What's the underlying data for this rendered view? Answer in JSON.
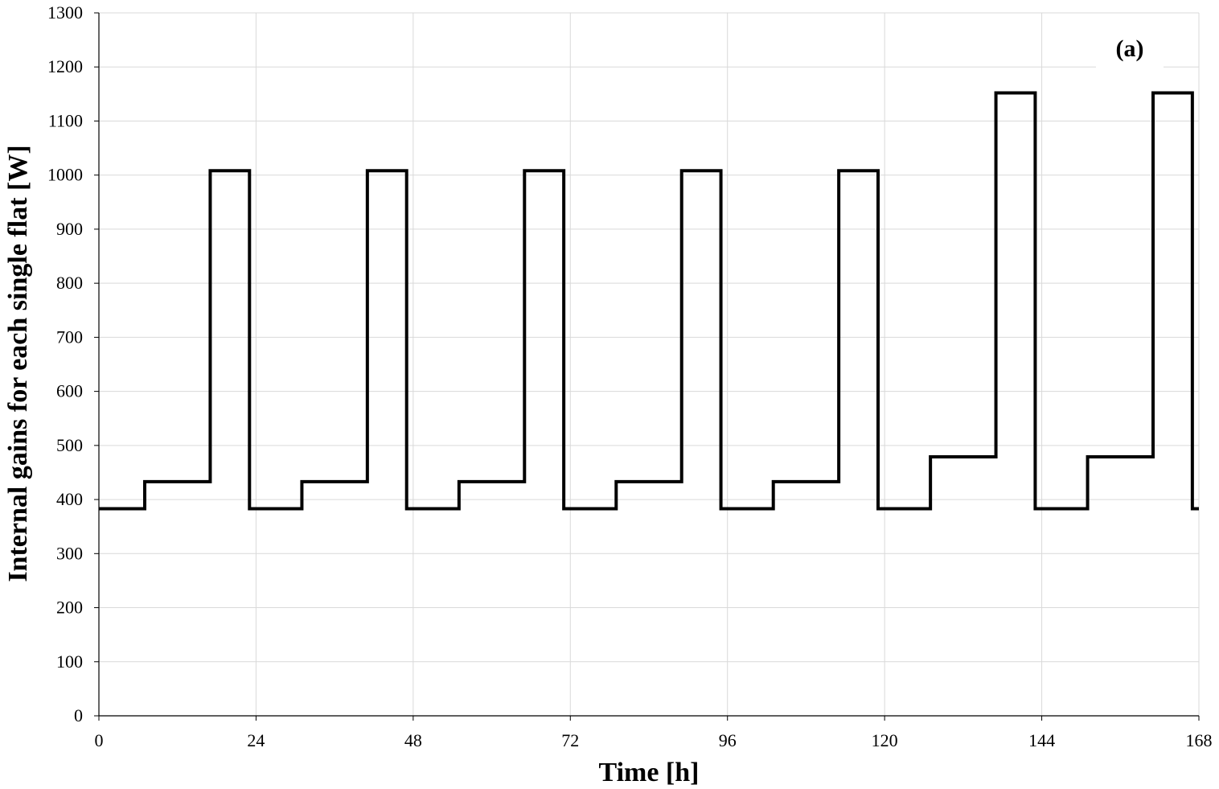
{
  "chart_data": {
    "type": "line",
    "subtype": "step",
    "panel_label": "(a)",
    "xlabel": "Time [h]",
    "ylabel": "Internal gains for each single flat [W]",
    "xlim": [
      0,
      168
    ],
    "ylim": [
      0,
      1300
    ],
    "xticks": [
      0,
      24,
      48,
      72,
      96,
      120,
      144,
      168
    ],
    "yticks": [
      0,
      100,
      200,
      300,
      400,
      500,
      600,
      700,
      800,
      900,
      1000,
      1100,
      1200,
      1300
    ],
    "grid": true,
    "legend": false,
    "line_color": "#000000",
    "grid_color": "#d9d9d9",
    "series": [
      {
        "x": [
          0,
          7,
          7,
          17,
          17,
          23,
          23,
          31,
          31,
          41,
          41,
          47,
          47,
          55,
          55,
          65,
          65,
          71,
          71,
          79,
          79,
          89,
          89,
          95,
          95,
          103,
          103,
          113,
          113,
          119,
          119,
          127,
          127,
          137,
          137,
          143,
          143,
          151,
          151,
          161,
          161,
          167,
          167,
          168
        ],
        "y": [
          383,
          383,
          433,
          433,
          1008,
          1008,
          383,
          383,
          433,
          433,
          1008,
          1008,
          383,
          383,
          433,
          433,
          1008,
          1008,
          383,
          383,
          433,
          433,
          1008,
          1008,
          383,
          383,
          433,
          433,
          1008,
          1008,
          383,
          383,
          479,
          479,
          1152,
          1152,
          383,
          383,
          479,
          479,
          1152,
          1152,
          383,
          383
        ]
      }
    ]
  }
}
